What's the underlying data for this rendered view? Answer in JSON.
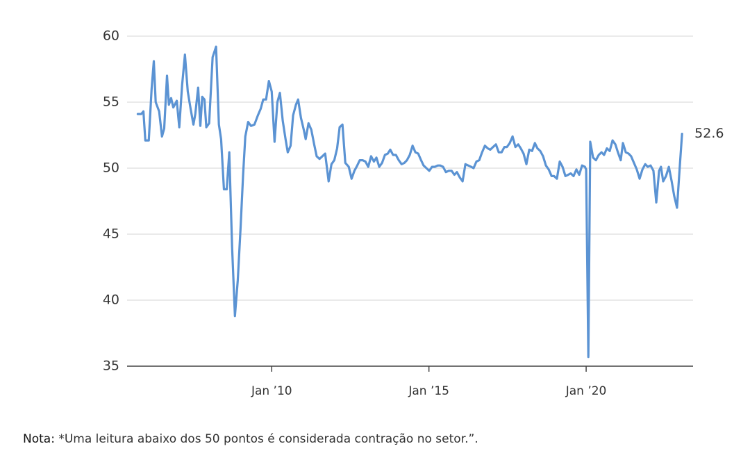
{
  "chart_data": {
    "type": "line",
    "xlim": [
      2005.4,
      2023.4
    ],
    "xticks": [
      {
        "value": 2010,
        "label": "Jan ’10"
      },
      {
        "value": 2015,
        "label": "Jan ’15"
      },
      {
        "value": 2020,
        "label": "Jan ’20"
      }
    ],
    "ylim": [
      35,
      60
    ],
    "yticks": [
      35,
      40,
      45,
      50,
      55,
      60
    ],
    "grid": true,
    "x": [
      2005.74,
      2005.85,
      2005.92,
      2005.98,
      2006.09,
      2006.18,
      2006.25,
      2006.31,
      2006.42,
      2006.51,
      2006.58,
      2006.67,
      2006.73,
      2006.8,
      2006.87,
      2006.98,
      2007.06,
      2007.15,
      2007.24,
      2007.33,
      2007.42,
      2007.51,
      2007.57,
      2007.66,
      2007.73,
      2007.79,
      2007.86,
      2007.92,
      2008.01,
      2008.12,
      2008.23,
      2008.32,
      2008.39,
      2008.48,
      2008.57,
      2008.65,
      2008.74,
      2008.83,
      2008.92,
      2009.01,
      2009.09,
      2009.16,
      2009.25,
      2009.34,
      2009.45,
      2009.56,
      2009.65,
      2009.73,
      2009.82,
      2009.91,
      2010.0,
      2010.09,
      2010.18,
      2010.26,
      2010.35,
      2010.44,
      2010.51,
      2010.6,
      2010.68,
      2010.77,
      2010.84,
      2010.93,
      2011.02,
      2011.08,
      2011.17,
      2011.26,
      2011.35,
      2011.43,
      2011.52,
      2011.61,
      2011.7,
      2011.81,
      2011.9,
      2011.99,
      2012.08,
      2012.16,
      2012.25,
      2012.34,
      2012.45,
      2012.54,
      2012.63,
      2012.72,
      2012.8,
      2012.89,
      2012.98,
      2013.07,
      2013.16,
      2013.25,
      2013.33,
      2013.42,
      2013.51,
      2013.6,
      2013.69,
      2013.77,
      2013.86,
      2013.95,
      2014.04,
      2014.13,
      2014.22,
      2014.3,
      2014.39,
      2014.48,
      2014.57,
      2014.66,
      2014.75,
      2014.83,
      2014.92,
      2015.01,
      2015.1,
      2015.19,
      2015.28,
      2015.36,
      2015.45,
      2015.54,
      2015.63,
      2015.72,
      2015.81,
      2015.89,
      2015.98,
      2016.07,
      2016.16,
      2016.25,
      2016.34,
      2016.42,
      2016.51,
      2016.6,
      2016.69,
      2016.78,
      2016.87,
      2016.95,
      2017.04,
      2017.13,
      2017.22,
      2017.31,
      2017.4,
      2017.48,
      2017.57,
      2017.66,
      2017.75,
      2017.84,
      2017.92,
      2018.01,
      2018.1,
      2018.19,
      2018.28,
      2018.37,
      2018.45,
      2018.54,
      2018.63,
      2018.72,
      2018.81,
      2018.9,
      2018.98,
      2019.07,
      2019.16,
      2019.25,
      2019.34,
      2019.43,
      2019.51,
      2019.6,
      2019.69,
      2019.78,
      2019.87,
      2019.96,
      2020.0,
      2020.07,
      2020.13,
      2020.22,
      2020.31,
      2020.4,
      2020.49,
      2020.57,
      2020.66,
      2020.75,
      2020.84,
      2020.93,
      2021.01,
      2021.1,
      2021.17,
      2021.26,
      2021.35,
      2021.43,
      2021.52,
      2021.61,
      2021.7,
      2021.79,
      2021.88,
      2021.96,
      2022.05,
      2022.14,
      2022.23,
      2022.32,
      2022.38,
      2022.45,
      2022.54,
      2022.63,
      2022.72,
      2022.8,
      2022.89,
      2022.98,
      2023.05
    ],
    "series": [
      {
        "color": "#5b93d3",
        "values": [
          54.1,
          54.1,
          54.3,
          52.1,
          52.1,
          56,
          58.1,
          55,
          54.3,
          52.4,
          53,
          57,
          54.8,
          55.3,
          54.6,
          55.1,
          53.1,
          56.3,
          58.6,
          55.8,
          54.5,
          53.3,
          54.1,
          56.1,
          53.2,
          55.4,
          55.2,
          53.1,
          53.4,
          58.4,
          59.2,
          53.3,
          52.2,
          48.4,
          48.4,
          51.2,
          44,
          38.8,
          41.5,
          45.5,
          49.5,
          52.4,
          53.5,
          53.2,
          53.3,
          54,
          54.5,
          55.2,
          55.2,
          56.6,
          55.8,
          52,
          55,
          55.7,
          53.6,
          52.2,
          51.2,
          51.7,
          54,
          54.8,
          55.2,
          53.8,
          52.9,
          52.2,
          53.4,
          52.9,
          51.8,
          50.9,
          50.7,
          50.9,
          51.1,
          49,
          50.3,
          50.6,
          51.5,
          53.1,
          53.3,
          50.4,
          50.1,
          49.2,
          49.8,
          50.2,
          50.6,
          50.6,
          50.5,
          50.1,
          50.9,
          50.5,
          50.8,
          50.1,
          50.4,
          51,
          51.1,
          51.4,
          51,
          51,
          50.6,
          50.3,
          50.4,
          50.6,
          51,
          51.7,
          51.2,
          51.1,
          50.6,
          50.2,
          50,
          49.8,
          50.1,
          50.1,
          50.2,
          50.2,
          50.1,
          49.7,
          49.8,
          49.8,
          49.5,
          49.7,
          49.3,
          49,
          50.3,
          50.2,
          50.1,
          50,
          50.5,
          50.6,
          51.2,
          51.7,
          51.5,
          51.4,
          51.6,
          51.8,
          51.2,
          51.2,
          51.6,
          51.6,
          51.9,
          52.4,
          51.6,
          51.8,
          51.5,
          51.1,
          50.3,
          51.4,
          51.3,
          51.9,
          51.5,
          51.3,
          50.9,
          50.2,
          49.9,
          49.4,
          49.4,
          49.2,
          50.5,
          50.1,
          49.4,
          49.5,
          49.6,
          49.4,
          49.9,
          49.5,
          50.2,
          50.1,
          49.9,
          35.7,
          52,
          50.8,
          50.6,
          51,
          51.2,
          51,
          51.5,
          51.3,
          52.1,
          51.8,
          51.2,
          50.6,
          51.9,
          51.2,
          51.1,
          50.9,
          50.4,
          49.9,
          49.2,
          49.9,
          50.3,
          50.1,
          50.2,
          49.8,
          47.4,
          49.8,
          50.1,
          49,
          49.4,
          50.1,
          49,
          47.9,
          47,
          50.2,
          52.6
        ]
      }
    ],
    "note_label": "Nota:",
    "note": "*Uma leitura abaixo dos 50 pontos é considerada contração no setor.”."
  }
}
